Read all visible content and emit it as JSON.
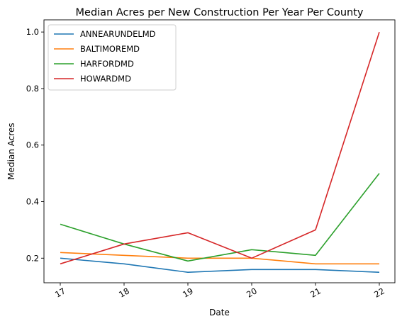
{
  "chart_data": {
    "type": "line",
    "title": "Median Acres per New Construction Per Year Per County",
    "xlabel": "Date",
    "ylabel": "Median Acres",
    "x": [
      "17",
      "18",
      "19",
      "20",
      "21",
      "22"
    ],
    "ylim": [
      0.113,
      1.043
    ],
    "yticks": [
      "0.2",
      "0.4",
      "0.6",
      "0.8",
      "1.0"
    ],
    "ytick_values": [
      0.2,
      0.4,
      0.6,
      0.8,
      1.0
    ],
    "grid": false,
    "legend_position": "top-left",
    "series": [
      {
        "name": "ANNEARUNDELMD",
        "color": "#1f77b4",
        "values": [
          0.2,
          0.18,
          0.15,
          0.16,
          0.16,
          0.15
        ]
      },
      {
        "name": "BALTIMOREMD",
        "color": "#ff7f0e",
        "values": [
          0.22,
          0.21,
          0.2,
          0.2,
          0.18,
          0.18
        ]
      },
      {
        "name": "HARFORDMD",
        "color": "#2ca02c",
        "values": [
          0.32,
          0.25,
          0.19,
          0.23,
          0.21,
          0.5
        ]
      },
      {
        "name": "HOWARDMD",
        "color": "#d62728",
        "values": [
          0.18,
          0.25,
          0.29,
          0.2,
          0.3,
          1.0
        ]
      }
    ]
  }
}
